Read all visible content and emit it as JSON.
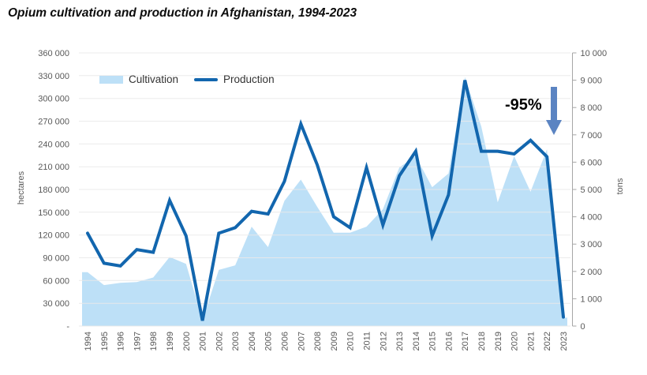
{
  "title": "Opium cultivation and production in Afghanistan, 1994-2023",
  "legend": {
    "cultivation_label": "Cultivation",
    "production_label": "Production"
  },
  "annotation": {
    "label": "-95%",
    "meaning": "drop from 2022 to 2023"
  },
  "axes": {
    "left": {
      "title": "hectares",
      "tick_labels": [
        "360 000",
        "330 000",
        "300 000",
        "270 000",
        "240 000",
        "210 000",
        "180 000",
        "150 000",
        "120 000",
        "90 000",
        "60 000",
        "30 000",
        "-"
      ]
    },
    "right": {
      "title": "tons",
      "tick_labels": [
        "10 000",
        "9 000",
        "8 000",
        "7 000",
        "6 000",
        "5 000",
        "4 000",
        "3 000",
        "2 000",
        "1 000",
        "0"
      ]
    }
  },
  "colors": {
    "area": "#bde0f7",
    "line": "#1266ae",
    "arrow": "#5b84c2",
    "grid": "#e9e9e9",
    "axis_line": "#a6a6a6",
    "tick_text": "#595959"
  },
  "chart_data": {
    "type": "combo (area + line), dual axis",
    "title": "Opium cultivation and production in Afghanistan, 1994-2023",
    "categories": [
      "1994",
      "1995",
      "1996",
      "1997",
      "1998",
      "1999",
      "2000",
      "2001",
      "2002",
      "2003",
      "2004",
      "2005",
      "2006",
      "2007",
      "2008",
      "2009",
      "2010",
      "2011",
      "2012",
      "2013",
      "2014",
      "2015",
      "2016",
      "2017",
      "2018",
      "2019",
      "2020",
      "2021",
      "2022",
      "2023"
    ],
    "left_axis": {
      "label": "hectares",
      "min": 0,
      "max": 360000,
      "step": 30000
    },
    "right_axis": {
      "label": "tons",
      "min": 0,
      "max": 10000,
      "step": 1000
    },
    "grid": "horizontal only",
    "legend_position": "top-left inside plot",
    "series": [
      {
        "name": "Cultivation",
        "type": "area",
        "axis": "left",
        "unit": "hectares",
        "values": [
          71000,
          54000,
          57000,
          58000,
          64000,
          91000,
          82000,
          8000,
          74000,
          80000,
          131000,
          104000,
          165000,
          193000,
          157000,
          123000,
          123000,
          131000,
          154000,
          209000,
          224000,
          183000,
          201000,
          328000,
          263000,
          163000,
          224000,
          177000,
          233000,
          11000
        ]
      },
      {
        "name": "Production",
        "type": "line",
        "axis": "right",
        "unit": "tons",
        "values": [
          3400,
          2300,
          2200,
          2800,
          2700,
          4600,
          3300,
          200,
          3400,
          3600,
          4200,
          4100,
          5300,
          7400,
          5900,
          4000,
          3600,
          5800,
          3700,
          5500,
          6400,
          3300,
          4800,
          9000,
          6400,
          6400,
          6300,
          6800,
          6200,
          330
        ]
      }
    ]
  }
}
